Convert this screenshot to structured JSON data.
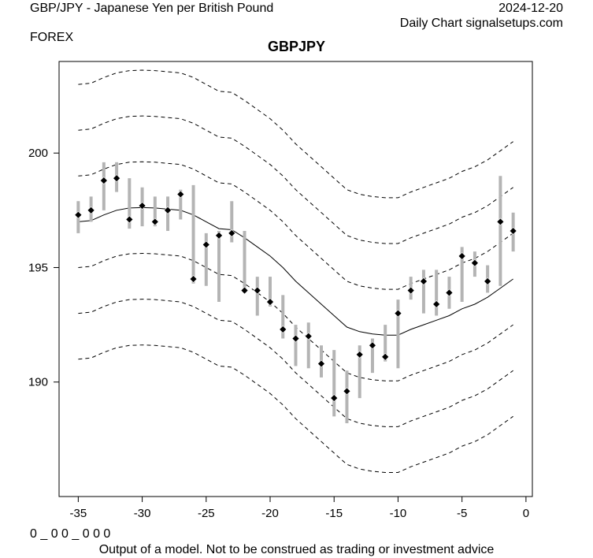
{
  "header": {
    "title": "GBP/JPY - Japanese Yen per British Pound",
    "date": "2024-12-20",
    "source": "Daily Chart signalsetups.com",
    "market": "FOREX"
  },
  "footer": {
    "left_code": "0 _ 0 0 _ 0 0 0",
    "disclaimer": "Output of a model. Not to be construed as trading or investment advice"
  },
  "chart_data": {
    "type": "line",
    "title": "GBPJPY",
    "xlabel": "",
    "ylabel": "",
    "xlim": [
      -36.5,
      0.5
    ],
    "ylim": [
      185,
      204
    ],
    "x_ticks": [
      -35,
      -30,
      -25,
      -20,
      -15,
      -10,
      -5,
      0
    ],
    "y_ticks": [
      190,
      195,
      200
    ],
    "grid": false,
    "colors": {
      "range_bar": "#b4b4b4",
      "close_marker": "#000000",
      "center_line": "#000000",
      "bands": "#000000"
    },
    "x": [
      -35,
      -34,
      -33,
      -32,
      -31,
      -30,
      -29,
      -28,
      -27,
      -26,
      -25,
      -24,
      -23,
      -22,
      -21,
      -20,
      -19,
      -18,
      -17,
      -16,
      -15,
      -14,
      -13,
      -12,
      -11,
      -10,
      -9,
      -8,
      -7,
      -6,
      -5,
      -4,
      -3,
      -2,
      -1
    ],
    "high": [
      197.9,
      198.1,
      199.6,
      199.6,
      198.9,
      198.5,
      198.1,
      198.1,
      198.4,
      198.6,
      196.5,
      196.6,
      197.9,
      196.6,
      194.6,
      194.6,
      193.8,
      192.5,
      192.6,
      191.6,
      191.4,
      190.5,
      191.6,
      191.9,
      192.5,
      193.6,
      194.6,
      194.9,
      194.9,
      194.6,
      195.9,
      195.7,
      195.1,
      199.0,
      197.4
    ],
    "low": [
      196.5,
      197.0,
      197.5,
      198.3,
      196.7,
      196.8,
      196.8,
      196.6,
      197.1,
      194.3,
      194.2,
      193.5,
      196.1,
      193.9,
      192.9,
      193.3,
      191.9,
      190.7,
      190.6,
      190.2,
      188.5,
      188.2,
      189.3,
      190.4,
      190.9,
      190.6,
      193.6,
      193.0,
      192.9,
      193.2,
      193.5,
      194.6,
      193.9,
      194.2,
      195.7
    ],
    "close": [
      197.3,
      197.5,
      198.8,
      198.9,
      197.1,
      197.7,
      197.0,
      197.5,
      198.2,
      194.5,
      196.0,
      196.4,
      196.5,
      194.0,
      194.0,
      193.5,
      192.3,
      191.9,
      192.0,
      190.8,
      189.3,
      189.6,
      191.2,
      191.6,
      191.1,
      193.0,
      194.0,
      194.4,
      193.4,
      193.9,
      195.5,
      195.2,
      194.4,
      197.0,
      196.6
    ],
    "center_line": {
      "x": [
        -35,
        -34,
        -33,
        -32,
        -31,
        -30,
        -29,
        -28,
        -27,
        -26,
        -25,
        -24,
        -23,
        -22,
        -21,
        -20,
        -19,
        -18,
        -17,
        -16,
        -15,
        -14,
        -13,
        -12,
        -11,
        -10,
        -9,
        -8,
        -7,
        -6,
        -5,
        -4,
        -3,
        -2,
        -1
      ],
      "y": [
        197.0,
        197.05,
        197.3,
        197.5,
        197.6,
        197.62,
        197.6,
        197.55,
        197.5,
        197.3,
        197.0,
        196.7,
        196.65,
        196.3,
        195.9,
        195.5,
        195.0,
        194.4,
        193.9,
        193.4,
        192.9,
        192.4,
        192.2,
        192.1,
        192.05,
        192.05,
        192.3,
        192.5,
        192.7,
        192.9,
        193.2,
        193.4,
        193.7,
        194.1,
        194.5
      ]
    },
    "band_offsets": [
      -6,
      -4,
      -2,
      2,
      4,
      6
    ],
    "band_style": "dashed"
  }
}
